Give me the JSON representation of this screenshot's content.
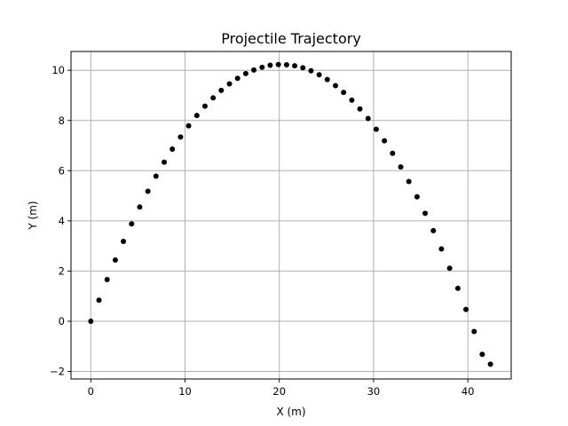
{
  "chart_data": {
    "type": "scatter",
    "title": "Projectile Trajectory",
    "xlabel": "X (m)",
    "ylabel": "Y (m)",
    "xlim": [
      -2.1,
      44.6
    ],
    "ylim": [
      -2.3,
      10.75
    ],
    "xticks": [
      0,
      10,
      20,
      30,
      40
    ],
    "yticks": [
      -2,
      0,
      2,
      4,
      6,
      8,
      10
    ],
    "grid": true,
    "marker_color": "#000000",
    "x": [
      0,
      0.87,
      1.73,
      2.6,
      3.46,
      4.33,
      5.19,
      6.06,
      6.92,
      7.79,
      8.65,
      9.52,
      10.38,
      11.25,
      12.11,
      12.98,
      13.84,
      14.71,
      15.57,
      16.44,
      17.3,
      18.17,
      19.03,
      19.9,
      20.77,
      21.63,
      22.5,
      23.36,
      24.23,
      25.09,
      25.96,
      26.82,
      27.69,
      28.55,
      29.42,
      30.28,
      31.15,
      32.01,
      32.88,
      33.74,
      34.61,
      35.47,
      36.34,
      37.2,
      38.07,
      38.94,
      39.8,
      40.67,
      41.53,
      42.4
    ],
    "y": [
      0,
      0.84,
      1.66,
      2.44,
      3.18,
      3.88,
      4.55,
      5.18,
      5.78,
      6.34,
      6.86,
      7.34,
      7.79,
      8.2,
      8.57,
      8.9,
      9.2,
      9.46,
      9.68,
      9.87,
      10.01,
      10.12,
      10.2,
      10.23,
      10.22,
      10.18,
      10.1,
      9.98,
      9.82,
      9.63,
      9.39,
      9.12,
      8.81,
      8.46,
      8.08,
      7.65,
      7.19,
      6.69,
      6.15,
      5.57,
      4.96,
      4.3,
      3.61,
      2.88,
      2.11,
      1.31,
      0.47,
      -0.41,
      -1.32,
      -1.71
    ]
  }
}
